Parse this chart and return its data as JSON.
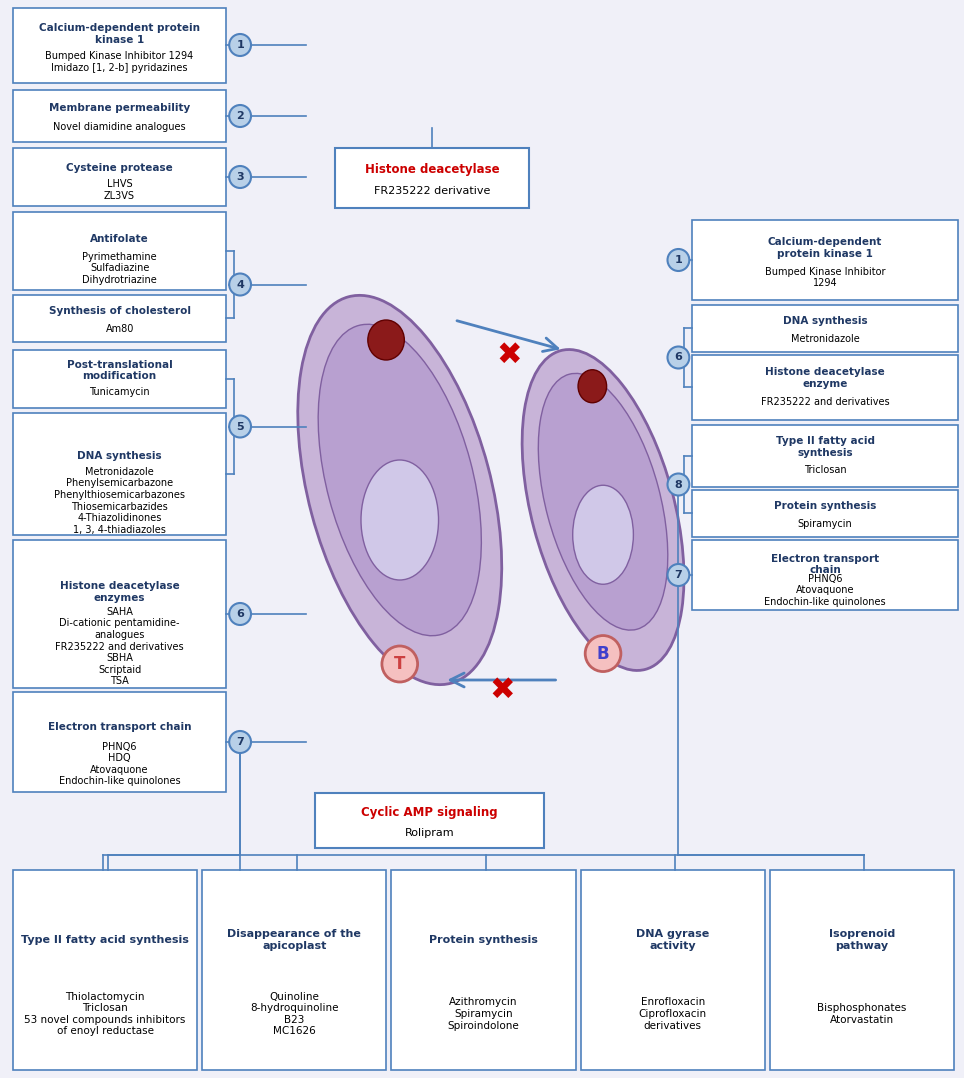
{
  "bg_color": "#f0f0f8",
  "box_edge_color": "#4f81bd",
  "box_face_color": "#ffffff",
  "circle_face_color": "#b8d0e8",
  "circle_edge_color": "#4f81bd",
  "title_color": "#1f3864",
  "text_color": "#000000",
  "red_color": "#cc0000",
  "left_boxes": [
    {
      "label": 1,
      "title": "Calcium-dependent protein\nkinase 1",
      "drugs": "Bumped Kinase Inhibitor 1294\nImidazo [1, 2-b] pyridazines"
    },
    {
      "label": 2,
      "title": "Membrane permeability",
      "drugs": "Novel diamidine analogues"
    },
    {
      "label": 3,
      "title": "Cysteine protease",
      "drugs": "LHVS\nZL3VS"
    },
    {
      "label": 4,
      "title": "Antifolate",
      "drugs": "Pyrimethamine\nSulfadiazine\nDihydrotriazine"
    },
    {
      "label": 4,
      "title": "Synthesis of cholesterol",
      "drugs": "Am80"
    },
    {
      "label": 5,
      "title": "Post-translational\nmodification",
      "drugs": "Tunicamycin"
    },
    {
      "label": 5,
      "title": "DNA synthesis",
      "drugs": "Metronidazole\nPhenylsemicarbazone\nPhenylthiosemicarbazones\nThiosemicarbazides\n4-Thiazolidinones\n1, 3, 4-thiadiazoles"
    },
    {
      "label": 6,
      "title": "Histone deacetylase\nenzymes",
      "drugs": "SAHA\nDi-cationic pentamidine-\nanalogues\nFR235222 and derivatives\nSBHA\nScriptaid\nTSA"
    },
    {
      "label": 7,
      "title": "Electron transport chain",
      "drugs": "PHNQ6\nHDQ\nAtovaquone\nEndochin-like quinolones"
    }
  ],
  "right_boxes": [
    {
      "label": 1,
      "title": "Calcium-dependent\nprotein kinase 1",
      "drugs": "Bumped Kinase Inhibitor\n1294"
    },
    {
      "label": 6,
      "title": "DNA synthesis",
      "drugs": "Metronidazole"
    },
    {
      "label": 6,
      "title": "Histone deacetylase\nenzyme",
      "drugs": "FR235222 and derivatives"
    },
    {
      "label": 8,
      "title": "Type II fatty acid\nsynthesis",
      "drugs": "Triclosan"
    },
    {
      "label": 8,
      "title": "Protein synthesis",
      "drugs": "Spiramycin"
    },
    {
      "label": 7,
      "title": "Electron transport\nchain",
      "drugs": "PHNQ6\nAtovaquone\nEndochin-like quinolones"
    }
  ],
  "bottom_boxes": [
    {
      "title": "Type II fatty acid synthesis",
      "drugs": "Thiolactomycin\nTriclosan\n53 novel compounds inhibitors\nof enoyl reductase"
    },
    {
      "title": "Disappearance of the\napicoplast",
      "drugs": "Quinoline\n8-hydroquinoline\nB23\nMC1626"
    },
    {
      "title": "Protein synthesis",
      "drugs": "Azithromycin\nSpiramycin\nSpiroindolone"
    },
    {
      "title": "DNA gyrase\nactivity",
      "drugs": "Enrofloxacin\nCiprofloxacin\nderivatives"
    },
    {
      "title": "Isoprenoid\npathway",
      "drugs": "Bisphosphonates\nAtorvastatin"
    }
  ],
  "center_top_box": {
    "title": "Histone deacetylase",
    "drugs": "FR235222 derivative",
    "title_color": "#cc0000"
  },
  "center_bottom_box": {
    "title": "Cyclic AMP signaling",
    "drugs": "Rolipram",
    "title_color": "#cc0000"
  }
}
